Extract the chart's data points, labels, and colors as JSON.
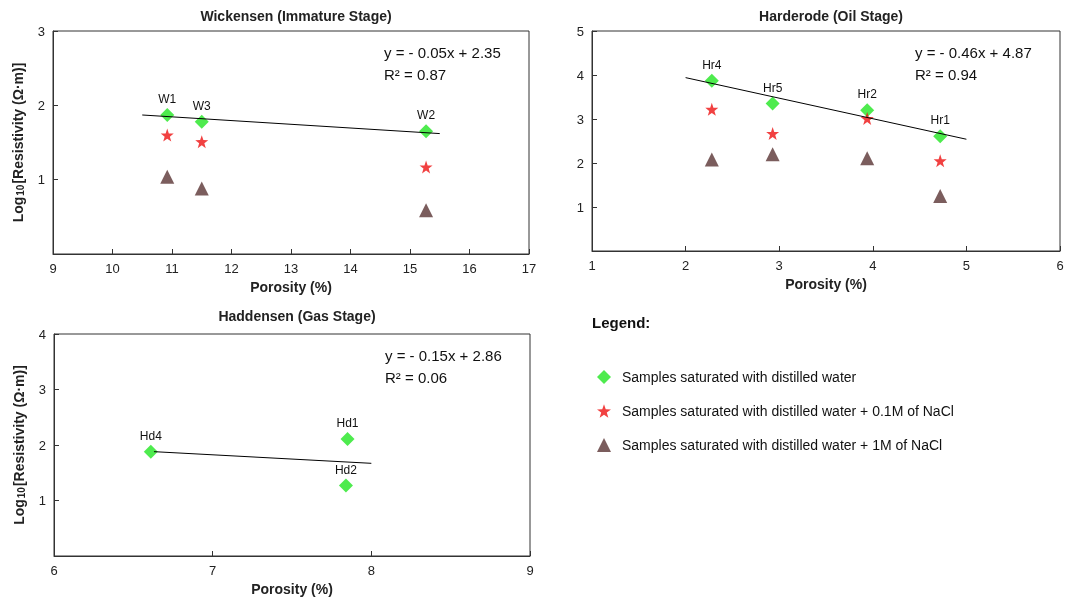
{
  "chart_data": [
    {
      "type": "scatter",
      "title": "Wickensen (Immature Stage)",
      "xlabel": "Porosity (%)",
      "ylabel": "Log$_{10}$[Resistivity (Ω·m)]",
      "xlim": [
        9,
        17
      ],
      "xticks": [
        9,
        10,
        11,
        12,
        13,
        14,
        15,
        16,
        17
      ],
      "ylim": [
        0,
        3
      ],
      "yticks": [
        1,
        2,
        3
      ],
      "grid": false,
      "legend": false,
      "x": [
        10.92,
        11.5,
        15.27
      ],
      "series": [
        {
          "color": "#22e622",
          "marker": "diamond",
          "values": [
            1.87,
            1.78,
            1.65
          ]
        },
        {
          "color": "#ee1111",
          "marker": "star",
          "values": [
            1.6,
            1.51,
            1.17
          ]
        },
        {
          "color": "#5a3535",
          "marker": "triangle",
          "values": [
            1.04,
            0.88,
            0.59
          ]
        },
        {
          "type": "line",
          "color": "#000000",
          "marker": "none",
          "x": [
            10.5,
            15.5
          ],
          "values": [
            1.87,
            1.62
          ]
        }
      ],
      "annotations": [
        "y = - 0.05x + 2.35",
        "R² = 0.87",
        {
          "text": "W1",
          "x": 10.92,
          "y": 1.87
        },
        {
          "text": "W3",
          "x": 11.5,
          "y": 1.78
        },
        {
          "text": "W2",
          "x": 15.27,
          "y": 1.65
        }
      ]
    },
    {
      "type": "scatter",
      "title": "Harderode (Oil Stage)",
      "xlabel": "Porosity (%)",
      "xlim": [
        1,
        6
      ],
      "xticks": [
        1,
        2,
        3,
        4,
        5,
        6
      ],
      "ylim": [
        0,
        5
      ],
      "yticks": [
        1,
        2,
        3,
        4,
        5
      ],
      "grid": false,
      "legend": "bottom",
      "legend_title": "Legend:",
      "x": [
        2.28,
        2.93,
        3.94,
        4.72
      ],
      "series": [
        {
          "name": "Samples saturated with distilled water",
          "color": "#22e622",
          "marker": "diamond",
          "values": [
            3.87,
            3.35,
            3.2,
            2.61
          ]
        },
        {
          "name": "Samples saturated with distilled water + 0.1M of NaCl",
          "color": "#ee1111",
          "marker": "star",
          "values": [
            3.22,
            2.67,
            3.01,
            2.05
          ]
        },
        {
          "name": "Samples saturated with distilled water + 1M of NaCl",
          "color": "#5a3535",
          "marker": "triangle",
          "values": [
            2.08,
            2.2,
            2.11,
            1.25
          ]
        },
        {
          "type": "line",
          "color": "#000000",
          "marker": "none",
          "x": [
            2,
            5
          ],
          "values": [
            3.94,
            2.54
          ]
        }
      ],
      "annotations": [
        "y = - 0.46x + 4.87",
        "R² = 0.94",
        {
          "text": "Hr4",
          "x": 2.28,
          "y": 3.87
        },
        {
          "text": "Hr5",
          "x": 2.93,
          "y": 3.35
        },
        {
          "text": "Hr2",
          "x": 3.94,
          "y": 3.2
        },
        {
          "text": "Hr1",
          "x": 4.72,
          "y": 2.61
        }
      ]
    },
    {
      "type": "scatter",
      "title": "Haddensen (Gas Stage)",
      "xlabel": "Porosity (%)",
      "ylabel": "Log$_{10}$[Resistivity (Ω·m)]",
      "xlim": [
        6,
        9
      ],
      "xticks": [
        6,
        7,
        8,
        9
      ],
      "ylim": [
        0,
        4
      ],
      "yticks": [
        1,
        2,
        3,
        4
      ],
      "grid": false,
      "legend": false,
      "x": [
        6.61,
        7.85,
        7.84
      ],
      "series": [
        {
          "color": "#22e622",
          "marker": "diamond",
          "values": [
            1.88,
            2.11,
            1.27
          ]
        },
        {
          "type": "line",
          "color": "#000000",
          "marker": "none",
          "x": [
            6.63,
            8.0
          ],
          "values": [
            1.88,
            1.67
          ]
        }
      ],
      "annotations": [
        "y = - 0.15x + 2.86",
        "R² = 0.06",
        {
          "text": "Hd4",
          "x": 6.61,
          "y": 1.88
        },
        {
          "text": "Hd1",
          "x": 7.85,
          "y": 2.11
        },
        {
          "text": "Hd2",
          "x": 7.84,
          "y": 1.27
        }
      ]
    }
  ]
}
